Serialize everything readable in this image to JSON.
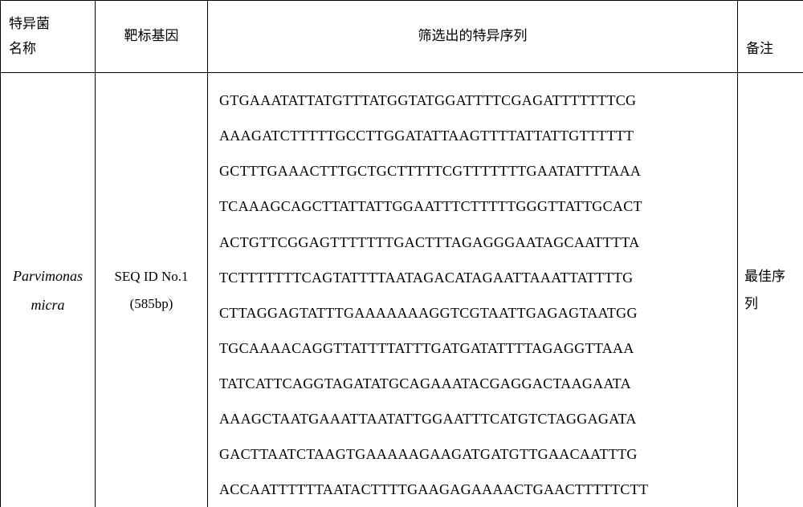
{
  "headers": {
    "col1_line1": "特异菌",
    "col1_line2": "名称",
    "col2": "靶标基因",
    "col3": "筛选出的特异序列",
    "col4": "备注"
  },
  "row": {
    "organism_line1": "Parvimonas",
    "organism_line2": "micra",
    "target_line1": "SEQ ID No.1",
    "target_line2": "(585bp)",
    "sequence": [
      "GTGAAATATTATGTTTATGGTATGGATTTTCGAGATTTTTTTCG",
      "AAAGATCTTTTTGCCTTGGATATTAAGTTTTATTATTGTTTTTT",
      "GCTTTGAAACTTTGCTGCTTTTTCGTTTTTTTGAATATTTTAAA",
      "TCAAAGCAGCTTATTATTGGAATTTCTTTTTGGGTTATTGCACT",
      "ACTGTTCGGAGTTTTTTTGACTTTAGAGGGAATAGCAATTTTA",
      "TCTTTTTTTCAGTATTTTAATAGACATAGAATTAAATTATTTTG",
      "CTTAGGAGTATTTGAAAAAAAGGTCGTAATTGAGAGTAATGG",
      "TGCAAAACAGGTTATTTTATTTGATGATATTTTAGAGGTTAAA",
      "TATCATTCAGGTAGATATGCAGAAATACGAGGACTAAGAATA",
      "AAAGCTAATGAAATTAATATTGGAATTTCATGTCTAGGAGATA",
      "GACTTAATCTAAGTGAAAAAGAAGATGATGTTGAACAATTTG",
      "ACCAATTTTTTAATACTTTTGAAGAGAAAACTGAACTTTTTCTT"
    ],
    "remarks_line1": "最佳序",
    "remarks_line2": "列"
  },
  "style": {
    "background": "#ffffff",
    "border_color": "#000000",
    "font_cn": "SimSun",
    "font_latin": "Times New Roman",
    "header_fontsize": 17,
    "body_fontsize": 18
  }
}
